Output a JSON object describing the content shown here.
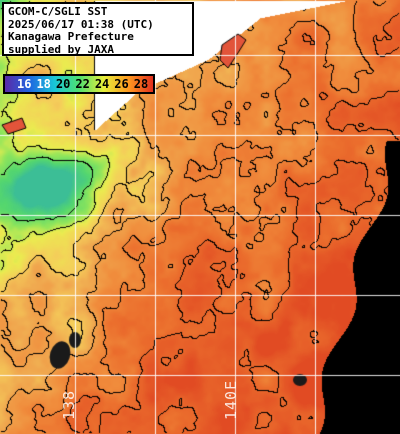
{
  "info": {
    "line1": "GCOM-C/SGLI SST",
    "line2": "2025/06/17 01:38 (UTC)",
    "line3": "Kanagawa Prefecture",
    "line4": "supplied by JAXA"
  },
  "legend": {
    "labels": [
      "16",
      "18",
      "20",
      "22",
      "24",
      "26",
      "28"
    ],
    "colors": [
      "#5a2aa8",
      "#1f66e0",
      "#18c6d8",
      "#4fe070",
      "#e6ee3a",
      "#ff9a20",
      "#e2301e"
    ],
    "unit_hidden": true
  },
  "grid": {
    "lon_labels": [
      "138",
      "140E"
    ]
  },
  "colors": {
    "land": "#ffffff",
    "no_data": "#000000",
    "grid": "#ffffff",
    "contour": "#000000",
    "sst_cool": "#55d070",
    "sst_mid": "#f2b04a",
    "sst_warm": "#e86a2a"
  }
}
